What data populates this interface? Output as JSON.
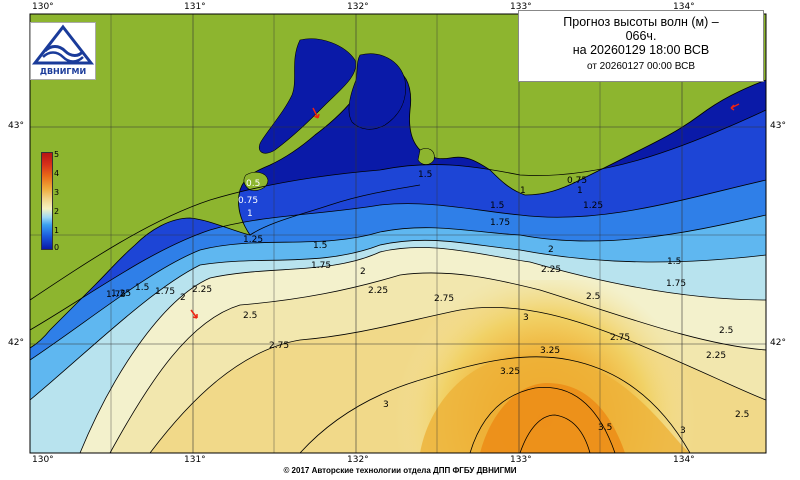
{
  "title": {
    "line1": "Прогноз высоты волн (м) –",
    "line2": "066ч.",
    "line3": "на 20260129 18:00 ВСВ",
    "line4": "от 20260127 00:00 ВСВ"
  },
  "logo": {
    "text": "ДВНИГМИ",
    "icon": "dvnigmi-wave-logo"
  },
  "axes": {
    "lon_top": [
      "130°",
      "131°",
      "132°",
      "133°",
      "134°"
    ],
    "lon_bottom": [
      "130°",
      "131°",
      "132°",
      "133°",
      "134°"
    ],
    "lat_left": [
      "43°",
      "42°"
    ],
    "lat_right": [
      "43°",
      "42°"
    ]
  },
  "legend": {
    "labels": [
      "5",
      "4",
      "3",
      "2",
      "1",
      "0"
    ],
    "unit": "м",
    "colors": [
      "#b81514",
      "#e96a18",
      "#f1d58a",
      "#f6f3c2",
      "#3aa0f0",
      "#0a1aa8"
    ]
  },
  "contour_labels": [
    "0.5",
    "0.75",
    "1",
    "1.25",
    "1.5",
    "1.75",
    "2",
    "2.25",
    "2.5",
    "2.75",
    "3",
    "3.25",
    "3.5"
  ],
  "contours_shown": [
    "0.5",
    "0.75",
    "1",
    "1.25",
    "1.5",
    "1.75",
    "2",
    "2.25",
    "2.5",
    "2.75",
    "3",
    "3.25",
    "3.5",
    "1.5",
    "1",
    "1.75",
    "1.25",
    "1",
    "0.75",
    "1.5",
    "1.75",
    "2",
    "2.25",
    "2.5",
    "2.75",
    "2",
    "2.25",
    "2.5",
    "1.5",
    "1.75",
    "3",
    "1.25",
    "1.5",
    "1.75",
    "2.25",
    "2.5",
    "2.75",
    "3",
    "3.25"
  ],
  "footer": "© 2017 Авторские технологии отдела ДПП ФГБУ ДВНИГМИ",
  "colors": {
    "land": "#8db52f",
    "grid": "#333333",
    "coast": "#000000"
  }
}
